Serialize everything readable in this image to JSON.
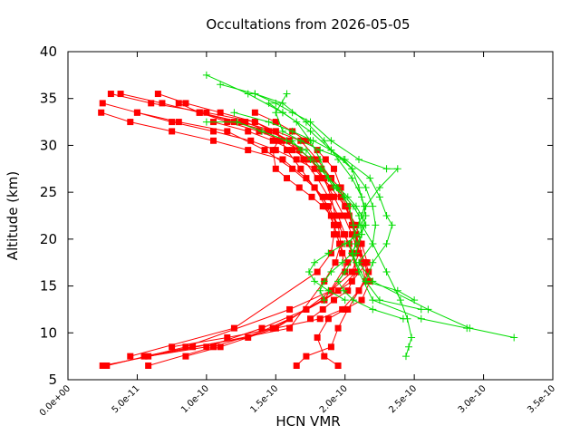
{
  "chart_data": {
    "type": "line",
    "title": "Occultations from 2026-05-05",
    "xlabel": "HCN VMR",
    "ylabel": "Altitude (km)",
    "xlim": [
      0,
      3.5e-10
    ],
    "ylim": [
      5,
      40
    ],
    "x_ticks": [
      0,
      5e-11,
      1e-10,
      1.5e-10,
      2e-10,
      2.5e-10,
      3e-10,
      3.5e-10
    ],
    "x_tick_labels": [
      "0.0e+00",
      "5.0e-11",
      "1.0e-10",
      "1.5e-10",
      "2.0e-10",
      "2.5e-10",
      "3.0e-10",
      "3.5e-10"
    ],
    "y_ticks": [
      5,
      10,
      15,
      20,
      25,
      30,
      35,
      40
    ],
    "y_tick_labels": [
      "5",
      "10",
      "15",
      "20",
      "25",
      "30",
      "35",
      "40"
    ],
    "grid": false,
    "legend": "none",
    "colors": {
      "red_series": "#ff0000",
      "green_series": "#00dd00"
    },
    "series": [
      {
        "group": "red",
        "marker": "square",
        "x": [
          3.1e-11,
          6e-11,
          1e-10,
          1.35e-10,
          1.6e-10,
          1.75e-10,
          1.85e-10,
          1.9e-10,
          1.93e-10,
          1.92e-10,
          1.9e-10,
          1.8e-10,
          1.2e-10,
          4.5e-11
        ],
        "y": [
          35.5,
          34.5,
          33.5,
          32.5,
          30.5,
          28.5,
          26.5,
          24.5,
          22.5,
          20.5,
          18.5,
          16.5,
          10.5,
          7.5
        ]
      },
      {
        "group": "red",
        "marker": "square",
        "x": [
          2.5e-11,
          5e-11,
          8e-11,
          1.15e-10,
          1.42e-10,
          1.62e-10,
          1.78e-10,
          1.88e-10,
          1.95e-10,
          1.97e-10,
          1.93e-10,
          1.85e-10,
          1.6e-10,
          2.5e-11
        ],
        "y": [
          34.5,
          33.5,
          32.5,
          31.5,
          29.5,
          27.5,
          25.5,
          23.5,
          21.5,
          19.5,
          17.5,
          15.5,
          10.5,
          6.5
        ]
      },
      {
        "group": "red",
        "marker": "square",
        "x": [
          2.4e-11,
          4.5e-11,
          7.5e-11,
          1.05e-10,
          1.3e-10,
          1.55e-10,
          1.72e-10,
          1.84e-10,
          1.9e-10,
          1.94e-10,
          1.98e-10,
          2e-10,
          1.9e-10,
          1.6e-10,
          8.5e-11,
          2.8e-11
        ],
        "y": [
          33.5,
          32.5,
          31.5,
          30.5,
          29.5,
          28.5,
          26.5,
          24.5,
          22.5,
          20.5,
          18.5,
          16.5,
          14.5,
          12.5,
          8.5,
          6.5
        ]
      },
      {
        "group": "red",
        "marker": "square",
        "x": [
          6.5e-11,
          8.5e-11,
          1.1e-10,
          1.35e-10,
          1.5e-10,
          1.58e-10,
          1.68e-10,
          1.78e-10,
          1.86e-10,
          1.92e-10,
          1.96e-10,
          2.02e-10,
          1.85e-10,
          1.48e-10,
          1.05e-10,
          5.8e-11
        ],
        "y": [
          35.5,
          34.5,
          33.5,
          32.5,
          31.5,
          29.5,
          27.5,
          25.5,
          23.5,
          21.5,
          19.5,
          17.5,
          13.5,
          10.5,
          8.5,
          6.5
        ]
      },
      {
        "group": "red",
        "marker": "square",
        "x": [
          8e-11,
          9.5e-11,
          1.2e-10,
          1.45e-10,
          1.6e-10,
          1.7e-10,
          1.8e-10,
          1.88e-10,
          1.95e-10,
          2e-10,
          2.05e-10,
          2.08e-10,
          1.95e-10,
          1.72e-10,
          1.4e-10,
          1e-10,
          5.8e-11
        ],
        "y": [
          34.5,
          33.5,
          32.5,
          31.5,
          30.5,
          28.5,
          26.5,
          24.5,
          22.5,
          20.5,
          18.5,
          16.5,
          14.5,
          12.5,
          10.5,
          8.5,
          7.5
        ]
      },
      {
        "group": "red",
        "marker": "square",
        "x": [
          5e-11,
          7.5e-11,
          1.05e-10,
          1.32e-10,
          1.5e-10,
          1.65e-10,
          1.78e-10,
          1.9e-10,
          2e-10,
          2.08e-10,
          2.12e-10,
          2.16e-10,
          2.05e-10,
          1.85e-10,
          1.6e-10,
          1.3e-10,
          9e-11,
          5.5e-11
        ],
        "y": [
          33.5,
          32.5,
          31.5,
          30.5,
          29.5,
          28.5,
          27.5,
          25.5,
          23.5,
          21.5,
          19.5,
          17.5,
          15.5,
          13.5,
          11.5,
          9.5,
          8.5,
          7.5
        ]
      },
      {
        "group": "red",
        "marker": "square",
        "x": [
          3.8e-11,
          6.8e-11,
          9.5e-11,
          1.25e-10,
          1.5e-10,
          1.68e-10,
          1.8e-10,
          1.9e-10,
          1.97e-10,
          2.03e-10,
          2.08e-10,
          2.1e-10,
          2.05e-10,
          1.9e-10,
          1.72e-10,
          1.5e-10,
          1.15e-10,
          7.5e-11
        ],
        "y": [
          35.5,
          34.5,
          33.5,
          32.5,
          31.5,
          30.5,
          28.5,
          26.5,
          24.5,
          22.5,
          20.5,
          18.5,
          16.5,
          14.5,
          12.5,
          10.5,
          9.5,
          8.5
        ]
      },
      {
        "group": "red",
        "marker": "square",
        "x": [
          9.5e-11,
          1.15e-10,
          1.38e-10,
          1.55e-10,
          1.67e-10,
          1.76e-10,
          1.84e-10,
          1.92e-10,
          1.99e-10,
          2.05e-10,
          2.1e-10,
          2.15e-10,
          2.17e-10,
          2.1e-10,
          1.98e-10,
          1.82e-10,
          1.5e-10,
          1.1e-10,
          8.5e-11
        ],
        "y": [
          33.5,
          32.5,
          31.5,
          30.5,
          29.5,
          28.5,
          26.5,
          24.5,
          22.5,
          20.5,
          18.5,
          17.5,
          16.5,
          14.5,
          12.5,
          11.5,
          10.5,
          8.5,
          7.5
        ]
      },
      {
        "group": "red",
        "marker": "square",
        "x": [
          1.35e-10,
          1.5e-10,
          1.62e-10,
          1.72e-10,
          1.8e-10,
          1.86e-10,
          1.92e-10,
          1.97e-10,
          2.02e-10,
          2.06e-10,
          2.1e-10,
          2.14e-10,
          2.18e-10,
          2.12e-10,
          2e-10,
          1.88e-10,
          1.8e-10,
          1.85e-10,
          1.95e-10
        ],
        "y": [
          33.5,
          32.5,
          31.5,
          30.5,
          29.5,
          28.5,
          27.5,
          25.5,
          23.5,
          21.5,
          19.5,
          17.5,
          15.5,
          13.5,
          12.5,
          11.5,
          9.5,
          7.5,
          6.5
        ]
      },
      {
        "group": "red",
        "marker": "square",
        "x": [
          1.05e-10,
          1.3e-10,
          1.48e-10,
          1.62e-10,
          1.74e-10,
          1.83e-10,
          1.9e-10,
          1.96e-10,
          2.01e-10,
          2.05e-10,
          2.09e-10,
          2.12e-10,
          2.15e-10,
          2.1e-10,
          2.02e-10,
          1.95e-10,
          1.9e-10,
          1.72e-10,
          1.65e-10
        ],
        "y": [
          32.5,
          31.5,
          30.5,
          29.5,
          28.5,
          27.5,
          26.5,
          25.5,
          23.5,
          21.5,
          19.5,
          17.5,
          15.5,
          14.5,
          12.5,
          10.5,
          8.5,
          7.5,
          6.5
        ]
      },
      {
        "group": "red",
        "marker": "square",
        "x": [
          1.28e-10,
          1.44e-10,
          1.52e-10,
          1.48e-10,
          1.5e-10,
          1.58e-10,
          1.67e-10,
          1.76e-10,
          1.84e-10,
          1.9e-10,
          1.95e-10,
          1.99e-10,
          2.03e-10,
          2.06e-10,
          2.08e-10,
          2.02e-10,
          1.92e-10,
          1.84e-10,
          1.75e-10
        ],
        "y": [
          32.5,
          31.5,
          30.5,
          29.5,
          27.5,
          26.5,
          25.5,
          24.5,
          23.5,
          22.5,
          21.5,
          20.5,
          19.5,
          18.5,
          16.5,
          14.5,
          13.5,
          12.5,
          11.5
        ]
      }
    ],
    "series_green": [
      {
        "group": "green",
        "marker": "plus",
        "x": [
          1e-10,
          1.3e-10,
          1.55e-10,
          1.75e-10,
          1.9e-10,
          2.05e-10,
          2.15e-10,
          2.2e-10,
          2.22e-10,
          2.2e-10,
          2.1e-10,
          2.2e-10,
          2.6e-10,
          2.9e-10,
          3.22e-10
        ],
        "y": [
          37.5,
          35.5,
          33.5,
          31.5,
          29.5,
          27.5,
          25.5,
          23.5,
          21.5,
          19.5,
          17.5,
          15.5,
          12.5,
          10.5,
          9.5
        ]
      },
      {
        "group": "green",
        "marker": "plus",
        "x": [
          1.1e-10,
          1.35e-10,
          1.55e-10,
          1.72e-10,
          1.85e-10,
          1.95e-10,
          2.05e-10,
          2.12e-10,
          2.15e-10,
          2.12e-10,
          2.05e-10,
          2.1e-10,
          2.2e-10,
          2.55e-10,
          2.88e-10
        ],
        "y": [
          36.5,
          35.5,
          34.5,
          32.5,
          30.5,
          28.5,
          26.5,
          24.5,
          22.5,
          20.5,
          18.5,
          16.5,
          13.5,
          11.5,
          10.5
        ]
      },
      {
        "group": "green",
        "marker": "plus",
        "x": [
          1.35e-10,
          1.5e-10,
          1.62e-10,
          1.75e-10,
          1.9e-10,
          2.1e-10,
          2.3e-10,
          2.38e-10,
          2.25e-10,
          2.15e-10,
          2.12e-10,
          2.2e-10,
          2.3e-10,
          2.4e-10,
          2.45e-10,
          2.48e-10,
          2.46e-10,
          2.44e-10
        ],
        "y": [
          35.5,
          34.5,
          33.5,
          32.5,
          30.5,
          28.5,
          27.5,
          27.5,
          25.5,
          23.5,
          21.5,
          19.5,
          16.5,
          13.5,
          11.5,
          9.5,
          8.5,
          7.5
        ]
      },
      {
        "group": "green",
        "marker": "plus",
        "x": [
          1.58e-10,
          1.5e-10,
          1.55e-10,
          1.68e-10,
          1.82e-10,
          2e-10,
          2.18e-10,
          2.25e-10,
          2.3e-10,
          2.34e-10,
          2.3e-10,
          2.2e-10,
          2.15e-10,
          2.25e-10,
          2.55e-10
        ],
        "y": [
          35.5,
          33.5,
          31.5,
          30.5,
          29.5,
          28.5,
          26.5,
          24.5,
          22.5,
          21.5,
          19.5,
          17.5,
          15.5,
          13.5,
          12.5
        ]
      },
      {
        "group": "green",
        "marker": "plus",
        "x": [
          1.45e-10,
          1.55e-10,
          1.65e-10,
          1.75e-10,
          1.82e-10,
          1.88e-10,
          1.94e-10,
          1.99e-10,
          2.03e-10,
          2.06e-10,
          2.08e-10,
          2.05e-10,
          1.98e-10,
          1.9e-10,
          1.85e-10,
          1.82e-10,
          1.85e-10
        ],
        "y": [
          34.5,
          33.5,
          32.5,
          30.5,
          28.5,
          26.5,
          25.5,
          24.5,
          23.5,
          21.5,
          19.5,
          18.5,
          17.5,
          16.5,
          15.5,
          14.5,
          13.5
        ]
      },
      {
        "group": "green",
        "marker": "plus",
        "x": [
          1.2e-10,
          1.45e-10,
          1.62e-10,
          1.77e-10,
          1.9e-10,
          1.99e-10,
          2.05e-10,
          2.1e-10,
          2.14e-10,
          2.1e-10,
          2.03e-10,
          2.08e-10,
          2.15e-10,
          2.38e-10,
          2.5e-10
        ],
        "y": [
          33.5,
          32.5,
          31.5,
          30.5,
          29.5,
          28.5,
          27.5,
          25.5,
          23.5,
          21.5,
          19.5,
          17.5,
          15.5,
          14.5,
          13.5
        ]
      },
      {
        "group": "green",
        "marker": "plus",
        "x": [
          1e-10,
          1.22e-10,
          1.4e-10,
          1.58e-10,
          1.72e-10,
          1.83e-10,
          1.92e-10,
          2e-10,
          2.06e-10,
          2.1e-10,
          2.12e-10,
          2.08e-10,
          2e-10,
          1.95e-10,
          1.99e-10,
          2.06e-10,
          2.2e-10,
          2.42e-10
        ],
        "y": [
          32.5,
          32.5,
          31.5,
          30.5,
          29.5,
          27.5,
          25.5,
          24.5,
          23.5,
          22.5,
          20.5,
          18.5,
          16.5,
          15.5,
          14.5,
          13.5,
          12.5,
          11.5
        ]
      },
      {
        "group": "green",
        "marker": "plus",
        "x": [
          1.62e-10,
          1.68e-10,
          1.75e-10,
          1.82e-10,
          1.88e-10,
          1.95e-10,
          2.02e-10,
          2.08e-10,
          2.12e-10,
          2.15e-10,
          2.1e-10,
          2e-10,
          1.88e-10,
          1.78e-10,
          1.74e-10,
          1.78e-10,
          1.88e-10,
          2e-10
        ],
        "y": [
          30.5,
          29.5,
          28.5,
          27.5,
          26.5,
          25.5,
          24.5,
          23.5,
          22.5,
          21.5,
          20.5,
          19.5,
          18.5,
          17.5,
          16.5,
          15.5,
          14.5,
          13.5
        ]
      }
    ]
  }
}
